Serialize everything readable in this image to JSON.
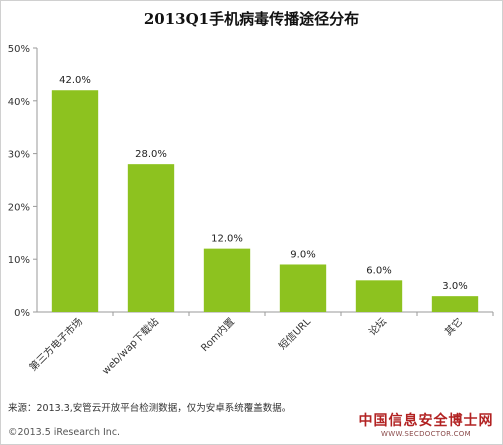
{
  "chart_data": {
    "type": "bar",
    "title": "2013Q1手机病毒传播途径分布",
    "categories": [
      "第三方电子市场",
      "web/wap下载站",
      "Rom内置",
      "短信URL",
      "论坛",
      "其它"
    ],
    "values": [
      42.0,
      28.0,
      12.0,
      9.0,
      6.0,
      3.0
    ],
    "value_labels": [
      "42.0%",
      "28.0%",
      "12.0%",
      "9.0%",
      "6.0%",
      "3.0%"
    ],
    "y_ticks": [
      "0%",
      "10%",
      "20%",
      "30%",
      "40%",
      "50%"
    ],
    "ylim": [
      0,
      50
    ],
    "grid": false,
    "legend": "none",
    "bar_color": "#8dc21f"
  },
  "footer": {
    "source": "来源：2013.3,安管云开放平台检测数据，仅为安卓系统覆盖数据。",
    "copyright": "©2013.5 iResearch Inc."
  },
  "watermark": {
    "title": "中国信息安全博士网",
    "url": "WWW.SECDOCTOR.COM"
  }
}
